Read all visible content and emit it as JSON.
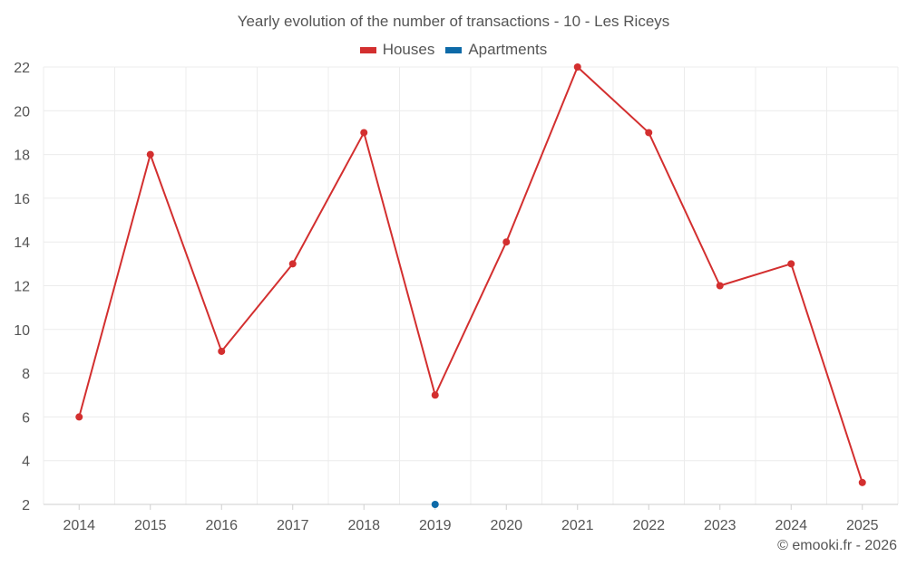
{
  "chart_data": {
    "type": "line",
    "title": "Yearly evolution of the number of transactions - 10 - Les Riceys",
    "xlabel": "",
    "ylabel": "",
    "categories": [
      "2014",
      "2015",
      "2016",
      "2017",
      "2018",
      "2019",
      "2020",
      "2021",
      "2022",
      "2023",
      "2024",
      "2025"
    ],
    "ylim": [
      2,
      22
    ],
    "yticks": [
      2,
      4,
      6,
      8,
      10,
      12,
      14,
      16,
      18,
      20,
      22
    ],
    "grid": true,
    "legend_position": "top-center",
    "series": [
      {
        "name": "Houses",
        "color": "#d32f2f",
        "values": [
          6,
          18,
          9,
          13,
          19,
          7,
          14,
          22,
          19,
          12,
          13,
          3
        ]
      },
      {
        "name": "Apartments",
        "color": "#0d6aa8",
        "values": [
          null,
          null,
          null,
          null,
          null,
          2,
          null,
          null,
          null,
          null,
          null,
          null
        ]
      }
    ]
  },
  "credit": "© emooki.fr - 2026"
}
